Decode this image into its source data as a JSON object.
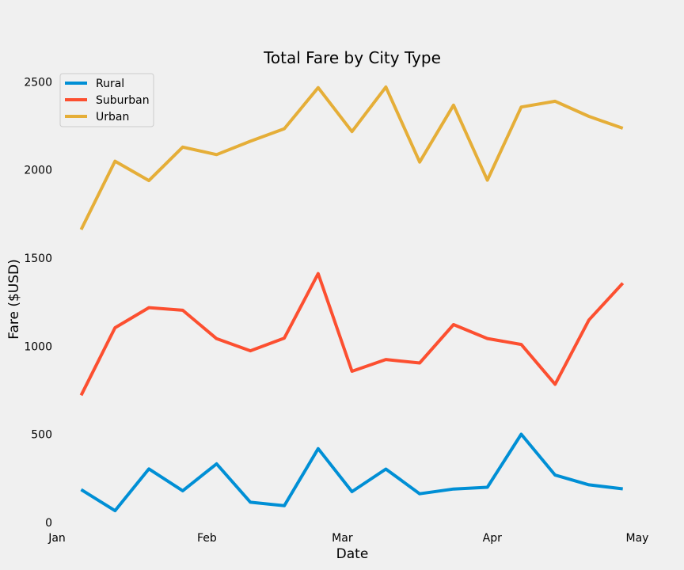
{
  "chart_data": {
    "type": "line",
    "title": "Total Fare by City Type",
    "xlabel": "Date",
    "ylabel": "Fare ($USD)",
    "x": [
      "2019-01-06",
      "2019-01-13",
      "2019-01-20",
      "2019-01-27",
      "2019-02-03",
      "2019-02-10",
      "2019-02-17",
      "2019-02-24",
      "2019-03-03",
      "2019-03-10",
      "2019-03-17",
      "2019-03-24",
      "2019-03-31",
      "2019-04-07",
      "2019-04-14",
      "2019-04-21",
      "2019-04-28"
    ],
    "xticks": [
      {
        "date": "2019-01-01",
        "label": "Jan"
      },
      {
        "date": "2019-02-01",
        "label": "Feb"
      },
      {
        "date": "2019-03-01",
        "label": "Mar"
      },
      {
        "date": "2019-04-01",
        "label": "Apr"
      },
      {
        "date": "2019-05-01",
        "label": "May"
      }
    ],
    "xlim": [
      "2019-01-01",
      "2019-05-01"
    ],
    "ylim": [
      0,
      2650
    ],
    "yticks": [
      0,
      500,
      1000,
      1500,
      2000,
      2500
    ],
    "grid": false,
    "legend": "upper-left",
    "series": [
      {
        "name": "Rural",
        "color": "#008fd5",
        "values": [
          187,
          67,
          304,
          180,
          333,
          115,
          95,
          419,
          175,
          303,
          163,
          190,
          200,
          501,
          269,
          214,
          191
        ]
      },
      {
        "name": "Suburban",
        "color": "#fc4f30",
        "values": [
          722,
          1105,
          1219,
          1204,
          1043,
          974,
          1046,
          1412,
          858,
          925,
          905,
          1123,
          1044,
          1010,
          784,
          1149,
          1358
        ]
      },
      {
        "name": "Urban",
        "color": "#e5ae38",
        "values": [
          1662,
          2050,
          1940,
          2130,
          2087,
          2163,
          2234,
          2467,
          2218,
          2471,
          2045,
          2368,
          1942,
          2357,
          2390,
          2304,
          2237
        ]
      }
    ]
  }
}
